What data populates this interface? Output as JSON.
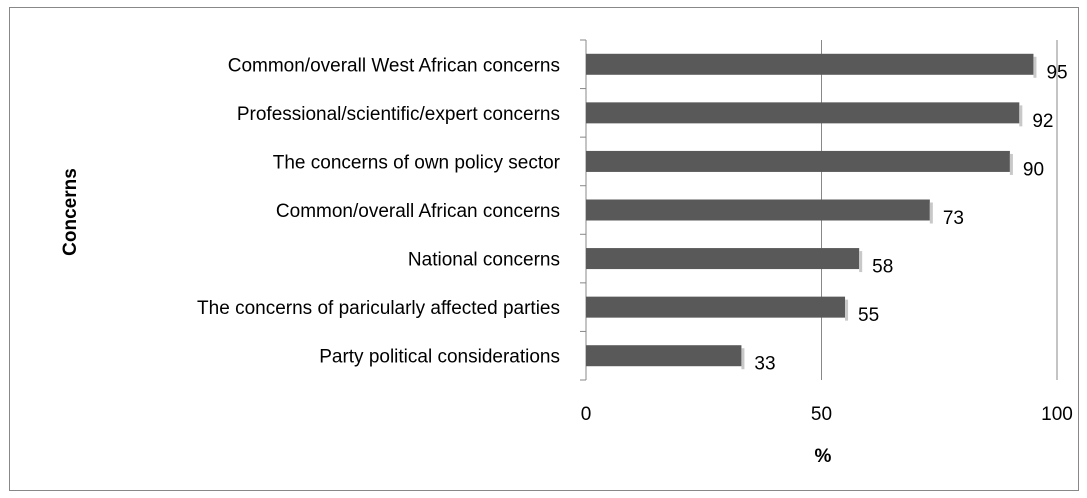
{
  "chart_data": {
    "type": "bar",
    "orientation": "horizontal",
    "categories": [
      "Common/overall West African concerns",
      "Professional/scientific/expert concerns",
      "The concerns of own policy sector",
      "Common/overall African concerns",
      "National concerns",
      "The concerns of paricularly affected parties",
      "Party political considerations"
    ],
    "values": [
      95,
      92,
      90,
      73,
      58,
      55,
      33
    ],
    "data_labels": [
      "95",
      "92",
      "90",
      "73",
      "58",
      "55",
      "33"
    ],
    "xlabel": "%",
    "ylabel": "Concerns",
    "xlim": [
      0,
      100
    ],
    "xticks": [
      "0",
      "50",
      "100"
    ],
    "xtick_values": [
      0,
      50,
      100
    ],
    "grid": "vertical major gridlines",
    "legend": "none",
    "colors": {
      "bar": "#595959",
      "grid": "#888888",
      "axis": "#888888"
    }
  }
}
